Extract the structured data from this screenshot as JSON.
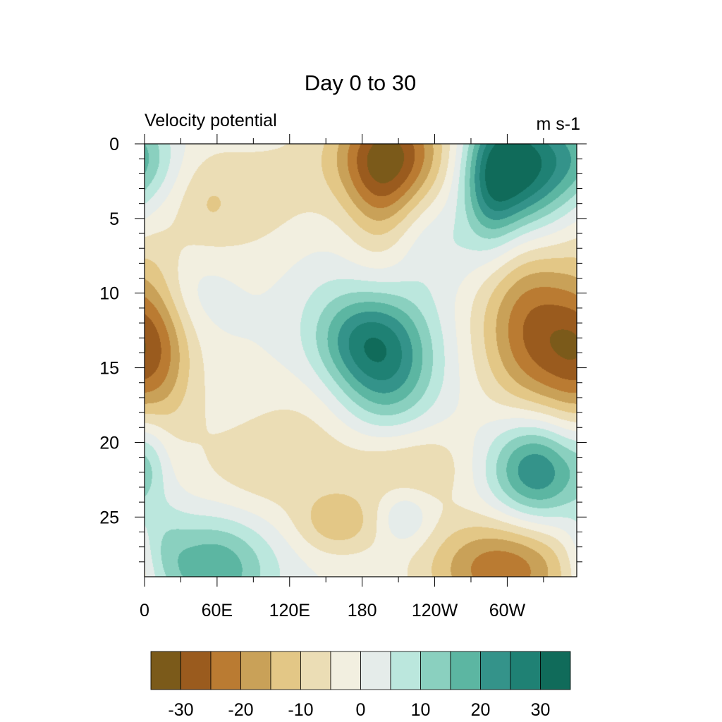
{
  "chart_data": {
    "type": "heatmap",
    "title": "Day 0 to 30",
    "left_label": "Velocity potential",
    "right_label": "m s-1",
    "x_ticks": [
      {
        "lon": 0,
        "label": "0"
      },
      {
        "lon": 60,
        "label": "60E"
      },
      {
        "lon": 120,
        "label": "120E"
      },
      {
        "lon": 180,
        "label": "180"
      },
      {
        "lon": 240,
        "label": "120W"
      },
      {
        "lon": 300,
        "label": "60W"
      }
    ],
    "x_minor_ticks": [
      30,
      90,
      150,
      210,
      270,
      330
    ],
    "xlim": [
      0,
      357.5
    ],
    "y_ticks": [
      0,
      5,
      10,
      15,
      20,
      25
    ],
    "ylim": [
      0,
      29
    ],
    "y_reversed": true,
    "colorbar": {
      "bounds": [
        -35,
        -30,
        -25,
        -20,
        -15,
        -10,
        -5,
        0,
        5,
        10,
        15,
        20,
        25,
        30,
        35
      ],
      "labels": [
        "-30",
        "-20",
        "-10",
        "0",
        "10",
        "20",
        "30"
      ],
      "label_values": [
        -30,
        -20,
        -10,
        0,
        10,
        20,
        30
      ],
      "colors": [
        "#7b5a1a",
        "#9a5b1e",
        "#ba7b32",
        "#c9a158",
        "#e3c786",
        "#ebddb5",
        "#f2efe0",
        "#e5ecea",
        "#bbe7dd",
        "#8ad0bf",
        "#5cb6a2",
        "#34938a",
        "#1f8174",
        "#106b5a"
      ]
    },
    "features": [
      {
        "x": 95,
        "y": 4,
        "amp": -7,
        "sx": 55,
        "sy": 4
      },
      {
        "x": 52,
        "y": 4,
        "amp": -5,
        "sx": 18,
        "sy": 2
      },
      {
        "x": 205,
        "y": 0.5,
        "amp": -26,
        "sx": 35,
        "sy": 2.5
      },
      {
        "x": 195,
        "y": 3.5,
        "amp": -12,
        "sx": 20,
        "sy": 3
      },
      {
        "x": 310,
        "y": 1.5,
        "amp": 34,
        "sx": 30,
        "sy": 3
      },
      {
        "x": 287,
        "y": 3,
        "amp": 12,
        "sx": 15,
        "sy": 3
      },
      {
        "x": 0,
        "y": 1,
        "amp": 10,
        "sx": 20,
        "sy": 2
      },
      {
        "x": 40,
        "y": 10,
        "amp": 5,
        "sx": 30,
        "sy": 2
      },
      {
        "x": 140,
        "y": 9,
        "amp": 4,
        "sx": 30,
        "sy": 3
      },
      {
        "x": 200,
        "y": 8.5,
        "amp": -4,
        "sx": 25,
        "sy": 2
      },
      {
        "x": 240,
        "y": 7,
        "amp": 5,
        "sx": 30,
        "sy": 2
      },
      {
        "x": 198,
        "y": 14.5,
        "amp": 27,
        "sx": 30,
        "sy": 3.5
      },
      {
        "x": 170,
        "y": 13,
        "amp": 9,
        "sx": 25,
        "sy": 2
      },
      {
        "x": 320,
        "y": 12,
        "amp": -20,
        "sx": 32,
        "sy": 4
      },
      {
        "x": 330,
        "y": 14,
        "amp": -5,
        "sx": 30,
        "sy": 4
      },
      {
        "x": 5,
        "y": 14,
        "amp": -14,
        "sx": 25,
        "sy": 3
      },
      {
        "x": 10,
        "y": 11,
        "amp": -6,
        "sx": 18,
        "sy": 4
      },
      {
        "x": 5,
        "y": 18,
        "amp": -4,
        "sx": 35,
        "sy": 3
      },
      {
        "x": 150,
        "y": 17.5,
        "amp": -3,
        "sx": 50,
        "sy": 2
      },
      {
        "x": 325,
        "y": 21.8,
        "amp": 27,
        "sx": 28,
        "sy": 2.5
      },
      {
        "x": 5,
        "y": 21,
        "amp": 5,
        "sx": 10,
        "sy": 2
      },
      {
        "x": 130,
        "y": 21,
        "amp": -7,
        "sx": 60,
        "sy": 2.5
      },
      {
        "x": 230,
        "y": 21.5,
        "amp": -8,
        "sx": 30,
        "sy": 2
      },
      {
        "x": 190,
        "y": 21.5,
        "amp": -3,
        "sx": 25,
        "sy": 2
      },
      {
        "x": 160,
        "y": 25.5,
        "amp": -12,
        "sx": 25,
        "sy": 1.5
      },
      {
        "x": 215,
        "y": 25,
        "amp": 9,
        "sx": 15,
        "sy": 1.3
      },
      {
        "x": 297,
        "y": 28.5,
        "amp": -24,
        "sx": 45,
        "sy": 2.5
      },
      {
        "x": 55,
        "y": 28.5,
        "amp": 20,
        "sx": 35,
        "sy": 2.5
      },
      {
        "x": 15,
        "y": 27,
        "amp": 6,
        "sx": 15,
        "sy": 2
      },
      {
        "x": 90,
        "y": 23,
        "amp": -3,
        "sx": 40,
        "sy": 2
      }
    ]
  }
}
